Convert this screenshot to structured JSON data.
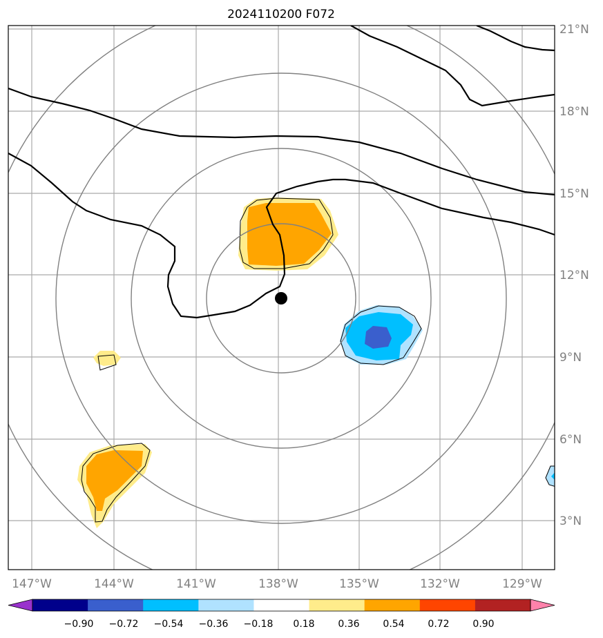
{
  "title": "2024110200 F072",
  "lat_labels": [
    "21°N",
    "18°N",
    "15°N",
    "12°N",
    "9°N",
    "6°N",
    "3°N"
  ],
  "lon_labels": [
    "147°W",
    "144°W",
    "141°W",
    "138°W",
    "135°W",
    "132°W",
    "129°W"
  ],
  "colorbar": {
    "ticks": [
      "−0.90",
      "−0.72",
      "−0.54",
      "−0.36",
      "−0.18",
      "0.18",
      "0.36",
      "0.54",
      "0.72",
      "0.90"
    ],
    "colors": [
      "#9932cc",
      "#00008b",
      "#3a5fcd",
      "#00bfff",
      "#b0e2ff",
      "#ffffff",
      "#ffec8b",
      "#ffa500",
      "#ff4500",
      "#b22222",
      "#ff82ab"
    ]
  },
  "storm_center": {
    "lat": 11.2,
    "lon": -137.9
  },
  "range_rings": {
    "count": 4,
    "color": "#808080"
  },
  "contour_color": "#000000",
  "grid_color": "#a9a9a9"
}
